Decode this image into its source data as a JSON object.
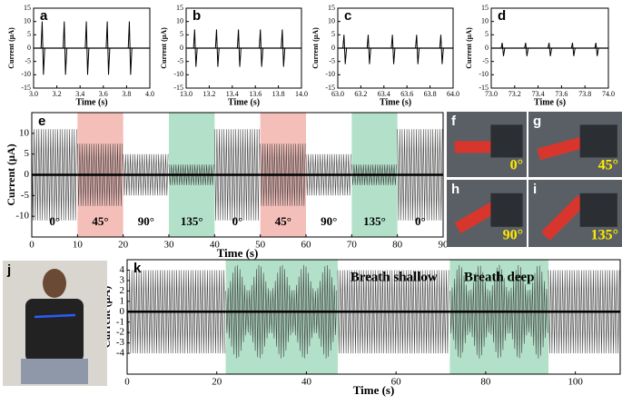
{
  "chart_data": [
    {
      "type": "line",
      "panel": "a",
      "xlabel": "Time (s)",
      "ylabel": "Current (μA)",
      "xlim": [
        3.0,
        4.0
      ],
      "ylim": [
        -15,
        15
      ],
      "xticks": [
        {
          "value": 3.0,
          "label": "3.0"
        },
        3.2,
        3.4,
        3.6,
        3.8,
        {
          "value": 4.0,
          "label": "4.0"
        }
      ],
      "yticks": [
        -15,
        -10,
        -5,
        0,
        5,
        10,
        15
      ],
      "spikes": {
        "x": [
          3.08,
          3.27,
          3.46,
          3.64,
          3.83
        ],
        "peak": [
          10,
          10,
          10,
          10,
          10
        ],
        "trough": [
          -10,
          -10,
          -10,
          -10,
          -10
        ]
      }
    },
    {
      "type": "line",
      "panel": "b",
      "xlabel": "Time (s)",
      "ylabel": "Current (μA)",
      "xlim": [
        13.0,
        14.0
      ],
      "ylim": [
        -15,
        15
      ],
      "xticks": [
        {
          "value": 13.0,
          "label": "13.0"
        },
        13.2,
        13.4,
        13.6,
        13.8,
        {
          "value": 14.0,
          "label": "14.0"
        }
      ],
      "yticks": [
        -15,
        -10,
        -5,
        0,
        5,
        10,
        15
      ],
      "spikes": {
        "x": [
          13.08,
          13.27,
          13.46,
          13.65,
          13.84
        ],
        "peak": [
          7,
          7,
          7,
          7,
          7
        ],
        "trough": [
          -7,
          -7,
          -7,
          -7,
          -7
        ]
      }
    },
    {
      "type": "line",
      "panel": "c",
      "xlabel": "Time (s)",
      "ylabel": "Current (μA)",
      "xlim": [
        63.0,
        64.0
      ],
      "ylim": [
        -15,
        15
      ],
      "xticks": [
        {
          "value": 63.0,
          "label": "63.0"
        },
        63.2,
        63.4,
        63.6,
        63.8,
        {
          "value": 64.0,
          "label": "64.0"
        }
      ],
      "yticks": [
        -15,
        -10,
        -5,
        0,
        5,
        10,
        15
      ],
      "spikes": {
        "x": [
          63.06,
          63.27,
          63.48,
          63.69,
          63.9
        ],
        "peak": [
          5,
          5,
          5,
          5,
          5
        ],
        "trough": [
          -6,
          -6,
          -6,
          -6,
          -6
        ]
      }
    },
    {
      "type": "line",
      "panel": "d",
      "xlabel": "Time (s)",
      "ylabel": "Current (μA)",
      "xlim": [
        73.0,
        74.0
      ],
      "ylim": [
        -15,
        15
      ],
      "xticks": [
        {
          "value": 73.0,
          "label": "73.0"
        },
        73.2,
        73.4,
        73.6,
        73.8,
        {
          "value": 74.0,
          "label": "74.0"
        }
      ],
      "yticks": [
        -15,
        -10,
        -5,
        0,
        5,
        10,
        15
      ],
      "spikes": {
        "x": [
          73.1,
          73.3,
          73.5,
          73.7,
          73.9
        ],
        "peak": [
          2,
          2,
          2,
          2,
          2
        ],
        "trough": [
          -3,
          -3,
          -3,
          -3,
          -3
        ]
      }
    },
    {
      "type": "line",
      "panel": "e",
      "xlabel": "Time (s)",
      "ylabel": "Current (μA)",
      "xlim": [
        0,
        90
      ],
      "ylim": [
        -15,
        15
      ],
      "xticks": [
        0,
        10,
        20,
        30,
        40,
        50,
        60,
        70,
        80,
        90
      ],
      "yticks": [
        -10,
        -5,
        0,
        5,
        10
      ],
      "segments": [
        {
          "x0": 0,
          "x1": 10,
          "amplitude": 11,
          "label": "0°"
        },
        {
          "x0": 10,
          "x1": 20,
          "amplitude": 7.5,
          "label": "45°",
          "color": "#f2b3ad"
        },
        {
          "x0": 20,
          "x1": 30,
          "amplitude": 5,
          "label": "90°"
        },
        {
          "x0": 30,
          "x1": 40,
          "amplitude": 2.5,
          "label": "135°",
          "color": "#a6dbbf"
        },
        {
          "x0": 40,
          "x1": 50,
          "amplitude": 11,
          "label": "0°"
        },
        {
          "x0": 50,
          "x1": 60,
          "amplitude": 7.5,
          "label": "45°",
          "color": "#f2b3ad"
        },
        {
          "x0": 60,
          "x1": 70,
          "amplitude": 5,
          "label": "90°"
        },
        {
          "x0": 70,
          "x1": 80,
          "amplitude": 2.5,
          "label": "135°",
          "color": "#a6dbbf"
        },
        {
          "x0": 80,
          "x1": 90,
          "amplitude": 11,
          "label": "0°"
        }
      ]
    },
    {
      "type": "line",
      "panel": "k",
      "xlabel": "Time (s)",
      "ylabel": "Current (μA)",
      "xlim": [
        0,
        110
      ],
      "ylim": [
        -6,
        5
      ],
      "xticks": [
        0,
        20,
        40,
        60,
        80,
        100
      ],
      "yticks": [
        -4,
        -3,
        -2,
        -1,
        0,
        1,
        2,
        3,
        4
      ],
      "segments": [
        {
          "x0": 0,
          "x1": 22,
          "amplitude": 4
        },
        {
          "x0": 22,
          "x1": 47,
          "amplitude": 4.5,
          "amplitude_min": 2,
          "cycles": 5,
          "color": "#a6dbbf"
        },
        {
          "x0": 47,
          "x1": 72,
          "amplitude": 4,
          "label": "Breath shallow"
        },
        {
          "x0": 72,
          "x1": 94,
          "amplitude": 4.5,
          "amplitude_min": 2,
          "cycles": 5,
          "color": "#a6dbbf",
          "label": "Breath deep"
        },
        {
          "x0": 94,
          "x1": 110,
          "amplitude": 4
        }
      ]
    }
  ],
  "images": [
    {
      "label": "f",
      "caption": "0°"
    },
    {
      "label": "g",
      "caption": "45°"
    },
    {
      "label": "h",
      "caption": "90°"
    },
    {
      "label": "i",
      "caption": "135°"
    },
    {
      "label": "j"
    }
  ]
}
